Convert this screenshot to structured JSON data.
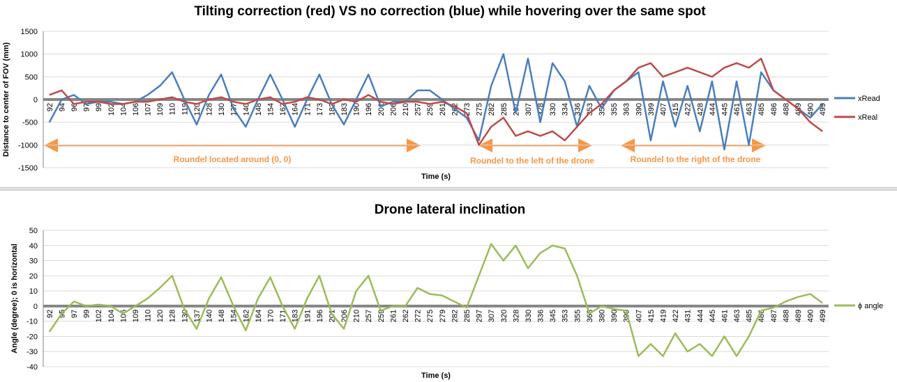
{
  "chart_data": [
    {
      "type": "line",
      "title": "Tilting correction (red) VS no correction (blue)  while hovering over the same spot",
      "xlabel": "Time (s)",
      "ylabel": "Distance  to center of FOV (mm)",
      "categories": [
        "92",
        "94",
        "96",
        "97",
        "99",
        "102",
        "104",
        "106",
        "107",
        "109",
        "110",
        "119",
        "120",
        "128",
        "130",
        "137",
        "140",
        "148",
        "154",
        "162",
        "164",
        "171",
        "173",
        "182",
        "183",
        "190",
        "196",
        "201",
        "206",
        "210",
        "257",
        "259",
        "261",
        "262",
        "273",
        "275",
        "282",
        "285",
        "297",
        "307",
        "328",
        "330",
        "334",
        "336",
        "353",
        "354",
        "355",
        "363",
        "390",
        "399",
        "407",
        "415",
        "422",
        "428",
        "444",
        "445",
        "461",
        "463",
        "485",
        "486",
        "488",
        "489",
        "490",
        "499"
      ],
      "series": [
        {
          "name": "xRead",
          "color": "#4a7ebb",
          "values": [
            -500,
            0,
            100,
            -100,
            -50,
            -50,
            -100,
            -50,
            100,
            300,
            600,
            0,
            -550,
            100,
            550,
            -200,
            -600,
            0,
            550,
            0,
            -600,
            0,
            550,
            -100,
            -550,
            0,
            550,
            -150,
            -50,
            -50,
            200,
            200,
            0,
            -200,
            -400,
            -900,
            300,
            1000,
            -300,
            900,
            -500,
            800,
            400,
            -600,
            300,
            -200,
            200,
            400,
            600,
            -900,
            400,
            -600,
            300,
            -700,
            400,
            -1100,
            400,
            -1000,
            600,
            200,
            0,
            -200,
            -400,
            -100
          ]
        },
        {
          "name": "xReal",
          "color": "#be4b48",
          "values": [
            100,
            200,
            -100,
            -50,
            -50,
            -100,
            -100,
            -50,
            -50,
            0,
            50,
            -50,
            -100,
            0,
            50,
            -50,
            -100,
            0,
            50,
            -100,
            -50,
            50,
            0,
            -100,
            0,
            -50,
            100,
            -50,
            -100,
            -50,
            -50,
            -100,
            -50,
            -150,
            -300,
            -1000,
            -600,
            -400,
            -800,
            -700,
            -800,
            -700,
            -900,
            -600,
            -300,
            -100,
            200,
            400,
            700,
            800,
            500,
            600,
            700,
            600,
            500,
            700,
            800,
            700,
            900,
            200,
            0,
            -200,
            -500,
            -700
          ]
        }
      ],
      "ylim": [
        -1500,
        1500
      ],
      "yticks": [
        -1500,
        -1000,
        -500,
        0,
        500,
        1000,
        1500
      ],
      "grid": true,
      "legend": "right",
      "annotations": [
        "Roundel located around (0, 0)",
        "Roundel to the left of the drone",
        "Roundel to the right of the drone"
      ],
      "annotation_color": "#f79646"
    },
    {
      "type": "line",
      "title": "Drone lateral inclination",
      "xlabel": "Time (s)",
      "ylabel": "Angle (degree); 0 is horizontal",
      "categories": [
        "92",
        "95",
        "97",
        "99",
        "102",
        "104",
        "106",
        "109",
        "110",
        "120",
        "128",
        "130",
        "137",
        "140",
        "148",
        "154",
        "162",
        "164",
        "170",
        "171",
        "183",
        "191",
        "196",
        "201",
        "206",
        "210",
        "257",
        "259",
        "261",
        "262",
        "272",
        "275",
        "279",
        "282",
        "285",
        "297",
        "307",
        "320",
        "328",
        "330",
        "336",
        "345",
        "353",
        "355",
        "363",
        "380",
        "390",
        "399",
        "407",
        "415",
        "419",
        "422",
        "431",
        "444",
        "445",
        "461",
        "463",
        "485",
        "486",
        "487",
        "488",
        "489",
        "490",
        "499"
      ],
      "series": [
        {
          "name": "ϕ angle",
          "color": "#9bbb59",
          "values": [
            -17,
            -5,
            3,
            0,
            1,
            0,
            -5,
            0,
            5,
            12,
            20,
            -2,
            -15,
            5,
            19,
            0,
            -16,
            5,
            19,
            0,
            -15,
            5,
            20,
            -5,
            -15,
            10,
            20,
            -3,
            0,
            0,
            12,
            8,
            7,
            3,
            -1,
            20,
            41,
            30,
            40,
            25,
            35,
            40,
            38,
            20,
            -5,
            0,
            -2,
            -3,
            -33,
            -25,
            -33,
            -18,
            -30,
            -25,
            -33,
            -20,
            -33,
            -20,
            -3,
            -1,
            3,
            6,
            8,
            2
          ]
        }
      ],
      "ylim": [
        -40,
        50
      ],
      "yticks": [
        -40,
        -30,
        -20,
        -10,
        0,
        10,
        20,
        30,
        40,
        50
      ],
      "grid": true,
      "legend": "right"
    }
  ]
}
